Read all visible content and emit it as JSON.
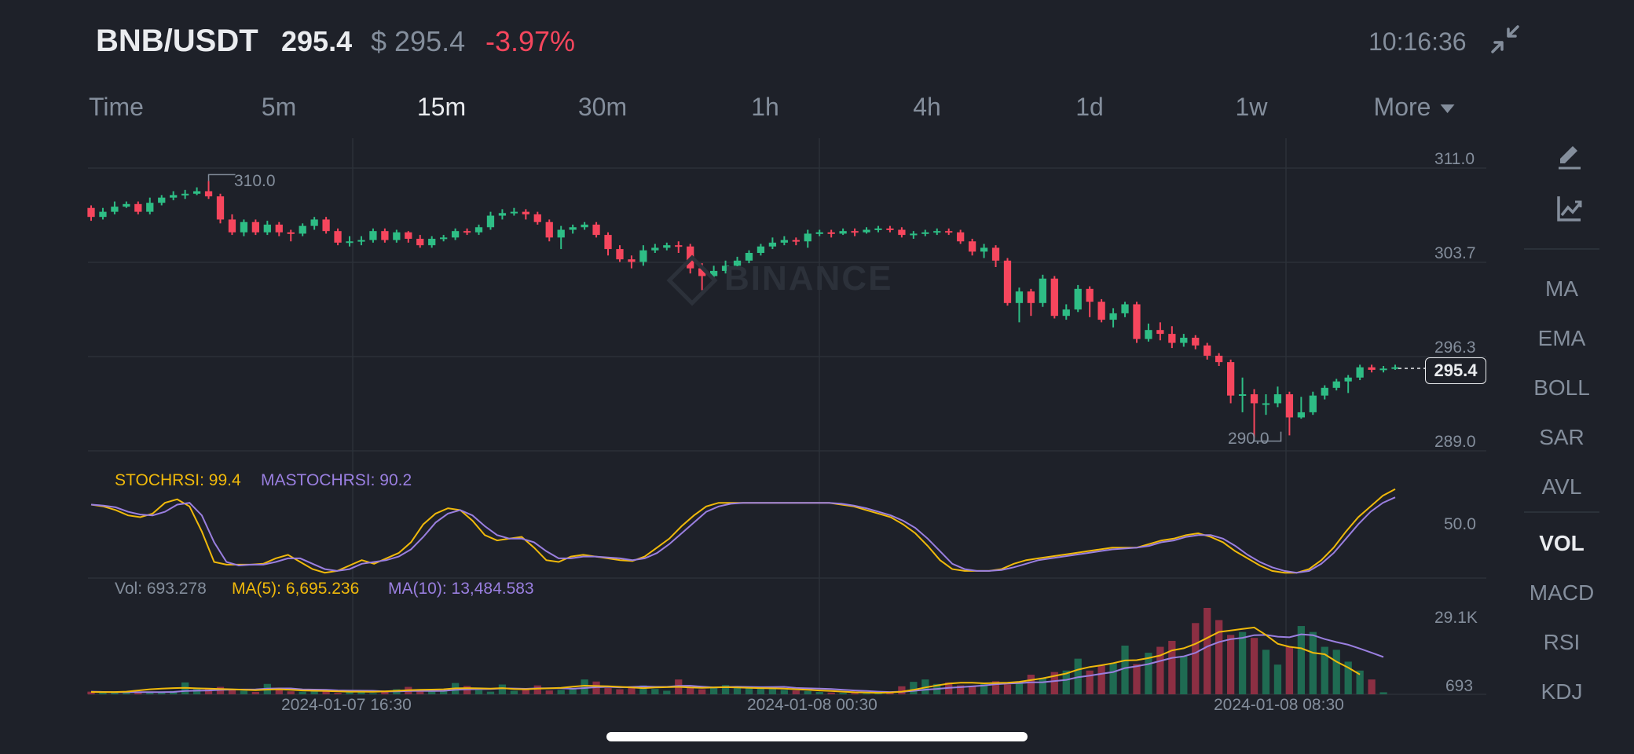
{
  "header": {
    "pair": "BNB/USDT",
    "last_price": "295.4",
    "usd_price": "$ 295.4",
    "change": "-3.97%",
    "clock": "10:16:36",
    "collapse_icon": "collapse-arrows-icon"
  },
  "tabs": [
    {
      "label": "Time",
      "active": false
    },
    {
      "label": "5m",
      "active": false
    },
    {
      "label": "15m",
      "active": true
    },
    {
      "label": "30m",
      "active": false
    },
    {
      "label": "1h",
      "active": false
    },
    {
      "label": "4h",
      "active": false
    },
    {
      "label": "1d",
      "active": false
    },
    {
      "label": "1w",
      "active": false
    },
    {
      "label": "More",
      "active": false
    }
  ],
  "sidebar": {
    "draw_icon": "pencil-icon",
    "indicator_icon": "chart-trend-icon",
    "main_indicators": [
      "MA",
      "EMA",
      "BOLL",
      "SAR",
      "AVL"
    ],
    "sub_indicators": [
      "VOL",
      "MACD",
      "RSI",
      "KDJ"
    ],
    "active": "VOL"
  },
  "watermark": "BINANCE",
  "colors": {
    "up": "#2ebd85",
    "down": "#f6465d",
    "stoch": "#f0b90b",
    "mastoch": "#9a7fe0",
    "background": "#1e2129"
  },
  "price_chart": {
    "y_ticks": [
      "311.0",
      "303.7",
      "296.3",
      "289.0"
    ],
    "high_label": "310.0",
    "low_label": "290.0",
    "current_tag": "295.4"
  },
  "stoch_panel": {
    "stoch_label": "STOCHRSI: 99.4",
    "mastoch_label": "MASTOCHRSI: 90.2",
    "level_label": "50.0"
  },
  "volume_panel": {
    "vol_label": "Vol: 693.278",
    "ma5_label": "MA(5): 6,695.236",
    "ma10_label": "MA(10): 13,484.583",
    "max_label": "29.1K",
    "min_label": "693"
  },
  "x_axis": [
    "2024-01-07 16:30",
    "2024-01-08 00:30",
    "2024-01-08 08:30"
  ],
  "chart_data": {
    "type": "candlestick",
    "ylim": [
      289.0,
      311.0
    ],
    "candles": [
      {
        "o": 307.9,
        "c": 307.2,
        "h": 308.1,
        "l": 306.9
      },
      {
        "o": 307.2,
        "c": 307.6,
        "h": 307.9,
        "l": 307.0
      },
      {
        "o": 307.6,
        "c": 308.0,
        "h": 308.4,
        "l": 307.4
      },
      {
        "o": 308.0,
        "c": 308.2,
        "h": 308.4,
        "l": 307.9
      },
      {
        "o": 308.2,
        "c": 307.6,
        "h": 308.4,
        "l": 307.4
      },
      {
        "o": 307.6,
        "c": 308.3,
        "h": 308.7,
        "l": 307.4
      },
      {
        "o": 308.3,
        "c": 308.7,
        "h": 308.9,
        "l": 308.1
      },
      {
        "o": 308.7,
        "c": 308.9,
        "h": 309.2,
        "l": 308.5
      },
      {
        "o": 308.9,
        "c": 309.0,
        "h": 309.3,
        "l": 308.6
      },
      {
        "o": 309.0,
        "c": 309.2,
        "h": 309.5,
        "l": 308.9
      },
      {
        "o": 309.2,
        "c": 308.8,
        "h": 310.0,
        "l": 308.6
      },
      {
        "o": 308.8,
        "c": 307.0,
        "h": 309.0,
        "l": 306.7
      },
      {
        "o": 307.0,
        "c": 306.0,
        "h": 307.4,
        "l": 305.8
      },
      {
        "o": 306.0,
        "c": 306.8,
        "h": 307.0,
        "l": 305.7
      },
      {
        "o": 306.8,
        "c": 306.0,
        "h": 307.0,
        "l": 305.8
      },
      {
        "o": 306.0,
        "c": 306.6,
        "h": 306.9,
        "l": 305.8
      },
      {
        "o": 306.6,
        "c": 306.0,
        "h": 306.8,
        "l": 305.7
      },
      {
        "o": 306.0,
        "c": 305.9,
        "h": 306.2,
        "l": 305.3
      },
      {
        "o": 305.9,
        "c": 306.5,
        "h": 306.7,
        "l": 305.7
      },
      {
        "o": 306.5,
        "c": 307.0,
        "h": 307.2,
        "l": 306.2
      },
      {
        "o": 307.0,
        "c": 306.1,
        "h": 307.2,
        "l": 305.9
      },
      {
        "o": 306.1,
        "c": 305.2,
        "h": 306.3,
        "l": 305.0
      },
      {
        "o": 305.2,
        "c": 305.3,
        "h": 305.7,
        "l": 304.9
      },
      {
        "o": 305.3,
        "c": 305.4,
        "h": 305.7,
        "l": 305.0
      },
      {
        "o": 305.4,
        "c": 306.1,
        "h": 306.3,
        "l": 305.2
      },
      {
        "o": 306.1,
        "c": 305.4,
        "h": 306.3,
        "l": 305.2
      },
      {
        "o": 305.4,
        "c": 306.0,
        "h": 306.2,
        "l": 305.2
      },
      {
        "o": 306.0,
        "c": 305.5,
        "h": 306.1,
        "l": 305.2
      },
      {
        "o": 305.5,
        "c": 305.0,
        "h": 305.8,
        "l": 304.8
      },
      {
        "o": 305.0,
        "c": 305.5,
        "h": 305.7,
        "l": 304.8
      },
      {
        "o": 305.5,
        "c": 305.6,
        "h": 305.8,
        "l": 305.3
      },
      {
        "o": 305.6,
        "c": 306.1,
        "h": 306.3,
        "l": 305.4
      },
      {
        "o": 306.1,
        "c": 306.0,
        "h": 306.3,
        "l": 305.8
      },
      {
        "o": 306.0,
        "c": 306.4,
        "h": 306.6,
        "l": 305.8
      },
      {
        "o": 306.4,
        "c": 307.3,
        "h": 307.6,
        "l": 306.2
      },
      {
        "o": 307.3,
        "c": 307.5,
        "h": 307.8,
        "l": 307.0
      },
      {
        "o": 307.5,
        "c": 307.6,
        "h": 307.9,
        "l": 307.3
      },
      {
        "o": 307.6,
        "c": 307.4,
        "h": 307.8,
        "l": 307.0
      },
      {
        "o": 307.4,
        "c": 306.8,
        "h": 307.6,
        "l": 306.6
      },
      {
        "o": 306.8,
        "c": 305.6,
        "h": 307.0,
        "l": 305.3
      },
      {
        "o": 305.6,
        "c": 306.2,
        "h": 306.5,
        "l": 304.7
      },
      {
        "o": 306.2,
        "c": 306.4,
        "h": 306.6,
        "l": 305.9
      },
      {
        "o": 306.4,
        "c": 306.6,
        "h": 306.8,
        "l": 306.2
      },
      {
        "o": 306.6,
        "c": 305.8,
        "h": 306.8,
        "l": 305.6
      },
      {
        "o": 305.8,
        "c": 304.7,
        "h": 306.0,
        "l": 304.2
      },
      {
        "o": 304.7,
        "c": 303.9,
        "h": 305.0,
        "l": 303.7
      },
      {
        "o": 303.9,
        "c": 303.7,
        "h": 304.2,
        "l": 303.2
      },
      {
        "o": 303.7,
        "c": 304.6,
        "h": 305.0,
        "l": 303.4
      },
      {
        "o": 304.6,
        "c": 304.8,
        "h": 305.1,
        "l": 304.4
      },
      {
        "o": 304.8,
        "c": 305.0,
        "h": 305.2,
        "l": 304.6
      },
      {
        "o": 305.0,
        "c": 304.9,
        "h": 305.3,
        "l": 304.4
      },
      {
        "o": 304.9,
        "c": 303.2,
        "h": 305.1,
        "l": 302.8
      },
      {
        "o": 303.2,
        "c": 302.6,
        "h": 303.6,
        "l": 301.5
      },
      {
        "o": 302.6,
        "c": 303.0,
        "h": 303.4,
        "l": 302.3
      },
      {
        "o": 303.0,
        "c": 303.4,
        "h": 303.8,
        "l": 302.8
      },
      {
        "o": 303.4,
        "c": 303.8,
        "h": 304.1,
        "l": 303.2
      },
      {
        "o": 303.8,
        "c": 304.4,
        "h": 304.6,
        "l": 303.6
      },
      {
        "o": 304.4,
        "c": 304.9,
        "h": 305.1,
        "l": 304.2
      },
      {
        "o": 304.9,
        "c": 305.2,
        "h": 305.6,
        "l": 304.7
      },
      {
        "o": 305.2,
        "c": 305.4,
        "h": 305.7,
        "l": 305.0
      },
      {
        "o": 305.4,
        "c": 305.3,
        "h": 305.6,
        "l": 305.0
      },
      {
        "o": 305.3,
        "c": 305.9,
        "h": 306.2,
        "l": 304.8
      },
      {
        "o": 305.9,
        "c": 306.0,
        "h": 306.2,
        "l": 305.7
      },
      {
        "o": 306.0,
        "c": 305.9,
        "h": 306.2,
        "l": 305.6
      },
      {
        "o": 305.9,
        "c": 306.1,
        "h": 306.3,
        "l": 305.8
      },
      {
        "o": 306.1,
        "c": 306.0,
        "h": 306.3,
        "l": 305.7
      },
      {
        "o": 306.0,
        "c": 306.2,
        "h": 306.4,
        "l": 305.9
      },
      {
        "o": 306.2,
        "c": 306.3,
        "h": 306.5,
        "l": 306.0
      },
      {
        "o": 306.3,
        "c": 306.2,
        "h": 306.5,
        "l": 306.0
      },
      {
        "o": 306.2,
        "c": 305.8,
        "h": 306.4,
        "l": 305.6
      },
      {
        "o": 305.8,
        "c": 305.9,
        "h": 306.1,
        "l": 305.5
      },
      {
        "o": 305.9,
        "c": 306.0,
        "h": 306.2,
        "l": 305.7
      },
      {
        "o": 306.0,
        "c": 306.1,
        "h": 306.3,
        "l": 305.8
      },
      {
        "o": 306.1,
        "c": 306.0,
        "h": 306.3,
        "l": 305.8
      },
      {
        "o": 306.0,
        "c": 305.3,
        "h": 306.2,
        "l": 305.1
      },
      {
        "o": 305.3,
        "c": 304.5,
        "h": 305.5,
        "l": 304.2
      },
      {
        "o": 304.5,
        "c": 304.8,
        "h": 305.1,
        "l": 304.0
      },
      {
        "o": 304.8,
        "c": 303.8,
        "h": 305.0,
        "l": 303.3
      },
      {
        "o": 303.8,
        "c": 300.5,
        "h": 304.0,
        "l": 300.3
      },
      {
        "o": 300.5,
        "c": 301.4,
        "h": 301.7,
        "l": 299.0
      },
      {
        "o": 301.4,
        "c": 300.5,
        "h": 301.6,
        "l": 299.5
      },
      {
        "o": 300.5,
        "c": 302.4,
        "h": 302.7,
        "l": 300.2
      },
      {
        "o": 302.4,
        "c": 299.5,
        "h": 302.6,
        "l": 299.3
      },
      {
        "o": 299.5,
        "c": 300.0,
        "h": 300.4,
        "l": 299.2
      },
      {
        "o": 300.0,
        "c": 301.6,
        "h": 301.9,
        "l": 299.8
      },
      {
        "o": 301.6,
        "c": 300.6,
        "h": 301.8,
        "l": 299.4
      },
      {
        "o": 300.6,
        "c": 299.2,
        "h": 300.8,
        "l": 299.0
      },
      {
        "o": 299.2,
        "c": 299.7,
        "h": 300.1,
        "l": 298.6
      },
      {
        "o": 299.7,
        "c": 300.4,
        "h": 300.6,
        "l": 299.4
      },
      {
        "o": 300.4,
        "c": 297.7,
        "h": 300.6,
        "l": 297.4
      },
      {
        "o": 297.7,
        "c": 298.4,
        "h": 298.9,
        "l": 297.5
      },
      {
        "o": 298.4,
        "c": 298.1,
        "h": 299.0,
        "l": 297.6
      },
      {
        "o": 298.1,
        "c": 297.4,
        "h": 298.7,
        "l": 297.0
      },
      {
        "o": 297.4,
        "c": 297.8,
        "h": 298.1,
        "l": 297.1
      },
      {
        "o": 297.8,
        "c": 297.2,
        "h": 298.0,
        "l": 296.9
      },
      {
        "o": 297.2,
        "c": 296.4,
        "h": 297.4,
        "l": 296.1
      },
      {
        "o": 296.4,
        "c": 295.9,
        "h": 296.6,
        "l": 295.6
      },
      {
        "o": 295.9,
        "c": 293.3,
        "h": 296.1,
        "l": 292.7
      },
      {
        "o": 293.3,
        "c": 293.4,
        "h": 294.7,
        "l": 292.0
      },
      {
        "o": 293.4,
        "c": 292.7,
        "h": 293.8,
        "l": 290.0
      },
      {
        "o": 292.7,
        "c": 292.7,
        "h": 293.4,
        "l": 291.8
      },
      {
        "o": 292.7,
        "c": 293.4,
        "h": 294.0,
        "l": 292.4
      },
      {
        "o": 293.4,
        "c": 291.6,
        "h": 293.6,
        "l": 290.2
      },
      {
        "o": 291.6,
        "c": 292.0,
        "h": 293.2,
        "l": 291.5
      },
      {
        "o": 292.0,
        "c": 293.3,
        "h": 293.6,
        "l": 291.8
      },
      {
        "o": 293.3,
        "c": 293.9,
        "h": 294.1,
        "l": 293.0
      },
      {
        "o": 293.9,
        "c": 294.4,
        "h": 294.6,
        "l": 293.7
      },
      {
        "o": 294.4,
        "c": 294.7,
        "h": 294.9,
        "l": 293.5
      },
      {
        "o": 294.7,
        "c": 295.5,
        "h": 295.7,
        "l": 294.5
      },
      {
        "o": 295.5,
        "c": 295.3,
        "h": 295.7,
        "l": 295.1
      },
      {
        "o": 295.3,
        "c": 295.4,
        "h": 295.6,
        "l": 295.1
      },
      {
        "o": 295.4,
        "c": 295.5,
        "h": 295.7,
        "l": 295.3
      }
    ],
    "stochrsi": [
      82,
      80,
      76,
      70,
      68,
      72,
      84,
      88,
      80,
      52,
      18,
      15,
      15,
      15,
      16,
      22,
      26,
      18,
      10,
      6,
      8,
      14,
      20,
      16,
      22,
      28,
      40,
      60,
      72,
      78,
      76,
      64,
      48,
      42,
      44,
      46,
      34,
      20,
      18,
      24,
      26,
      24,
      22,
      20,
      19,
      24,
      34,
      44,
      58,
      70,
      80,
      84,
      84,
      84,
      84,
      84,
      84,
      84,
      84,
      84,
      84,
      82,
      80,
      76,
      72,
      68,
      60,
      50,
      36,
      20,
      10,
      8,
      8,
      8,
      10,
      16,
      20,
      22,
      24,
      26,
      28,
      30,
      32,
      34,
      34,
      34,
      38,
      42,
      44,
      48,
      50,
      46,
      40,
      30,
      22,
      14,
      8,
      6,
      6,
      10,
      20,
      34,
      52,
      68,
      80,
      92,
      99.4
    ],
    "mastochrsi": [
      82,
      81,
      79,
      74,
      71,
      70,
      74,
      82,
      84,
      70,
      40,
      18,
      14,
      15,
      15,
      18,
      22,
      22,
      16,
      10,
      8,
      10,
      16,
      18,
      20,
      24,
      32,
      46,
      62,
      72,
      76,
      70,
      58,
      48,
      44,
      44,
      40,
      30,
      22,
      22,
      24,
      24,
      23,
      22,
      20,
      22,
      28,
      38,
      50,
      62,
      74,
      80,
      83,
      84,
      84,
      84,
      84,
      84,
      84,
      84,
      84,
      83,
      81,
      78,
      74,
      70,
      64,
      56,
      44,
      30,
      16,
      10,
      8,
      8,
      9,
      12,
      16,
      20,
      22,
      24,
      26,
      28,
      30,
      32,
      33,
      34,
      36,
      40,
      42,
      46,
      48,
      48,
      44,
      36,
      26,
      18,
      12,
      8,
      6,
      8,
      16,
      28,
      44,
      60,
      74,
      84,
      90.2
    ],
    "volume": [
      900,
      700,
      600,
      800,
      650,
      700,
      800,
      1100,
      4000,
      1900,
      1800,
      2500,
      1500,
      1200,
      800,
      3500,
      1600,
      1000,
      900,
      1200,
      1000,
      500,
      1000,
      800,
      400,
      1200,
      1700,
      2500,
      1400,
      1000,
      1200,
      3800,
      2800,
      1400,
      900,
      3300,
      1200,
      1500,
      3000,
      1300,
      1500,
      2000,
      5000,
      4300,
      2100,
      1700,
      2500,
      3000,
      1800,
      1200,
      5000,
      2300,
      1700,
      2100,
      3100,
      2600,
      2000,
      2400,
      2300,
      1500,
      1300,
      1100,
      800,
      600,
      500,
      400,
      300,
      300,
      800,
      2700,
      4200,
      5000,
      3500,
      4000,
      3000,
      2900,
      3500,
      4400,
      3300,
      4100,
      6600,
      5500,
      7500,
      8000,
      12000,
      8000,
      9700,
      10500,
      16400,
      10200,
      14000,
      16000,
      18000,
      13000,
      24000,
      29100,
      25000,
      20000,
      21000,
      19000,
      15000,
      10000,
      16000,
      23000,
      21000,
      16000,
      15000,
      11000,
      8000,
      5000,
      693
    ],
    "vol_ma5": [
      800,
      780,
      760,
      900,
      1300,
      1700,
      1900,
      2100,
      2200,
      2000,
      1900,
      1800,
      1700,
      1500,
      1400,
      1600,
      1700,
      1500,
      1300,
      1200,
      1100,
      1000,
      900,
      900,
      850,
      1000,
      1200,
      1400,
      1500,
      1600,
      1700,
      2000,
      2100,
      2000,
      1900,
      2100,
      1800,
      1700,
      1900,
      2000,
      2200,
      2600,
      2900,
      2800,
      2700,
      2500,
      2300,
      2100,
      2300,
      2400,
      2500,
      2300,
      2200,
      2300,
      2400,
      2300,
      2200,
      2100,
      2000,
      1900,
      1700,
      1500,
      1300,
      1100,
      900,
      700,
      600,
      500,
      600,
      900,
      1500,
      2300,
      3000,
      3600,
      3900,
      3900,
      3700,
      3800,
      3900,
      4200,
      4800,
      5400,
      6200,
      7000,
      8300,
      9200,
      9800,
      10500,
      11400,
      11500,
      12200,
      13100,
      14800,
      15500,
      17000,
      19000,
      21000,
      21500,
      22000,
      22500,
      20000,
      17000,
      16000,
      15500,
      14000,
      13500,
      11000,
      9000,
      6695
    ]
  }
}
